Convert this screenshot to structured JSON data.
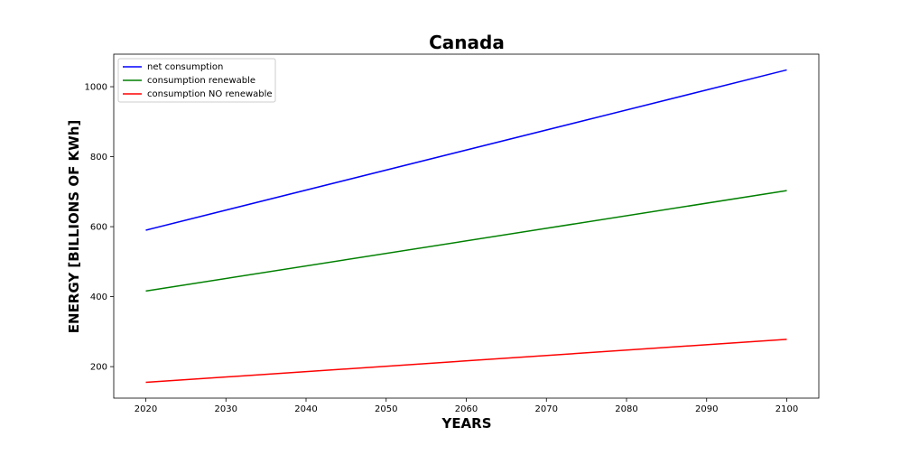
{
  "chart_data": {
    "type": "line",
    "title": "Canada",
    "xlabel": "YEARS",
    "ylabel": "ENERGY [BILLIONS OF KWh]",
    "x": [
      2020,
      2100
    ],
    "xlim": [
      2016,
      2104
    ],
    "ylim": [
      110,
      1093
    ],
    "xticks": [
      2020,
      2030,
      2040,
      2050,
      2060,
      2070,
      2080,
      2090,
      2100
    ],
    "yticks": [
      200,
      400,
      600,
      800,
      1000
    ],
    "grid": false,
    "legend_position": "top-left",
    "series": [
      {
        "name": "net consumption",
        "color": "#0000ff",
        "values": [
          590,
          1048
        ]
      },
      {
        "name": "consumption renewable",
        "color": "#008000",
        "values": [
          416,
          703
        ]
      },
      {
        "name": "consumption NO renewable",
        "color": "#ff0000",
        "values": [
          155,
          278
        ]
      }
    ]
  }
}
